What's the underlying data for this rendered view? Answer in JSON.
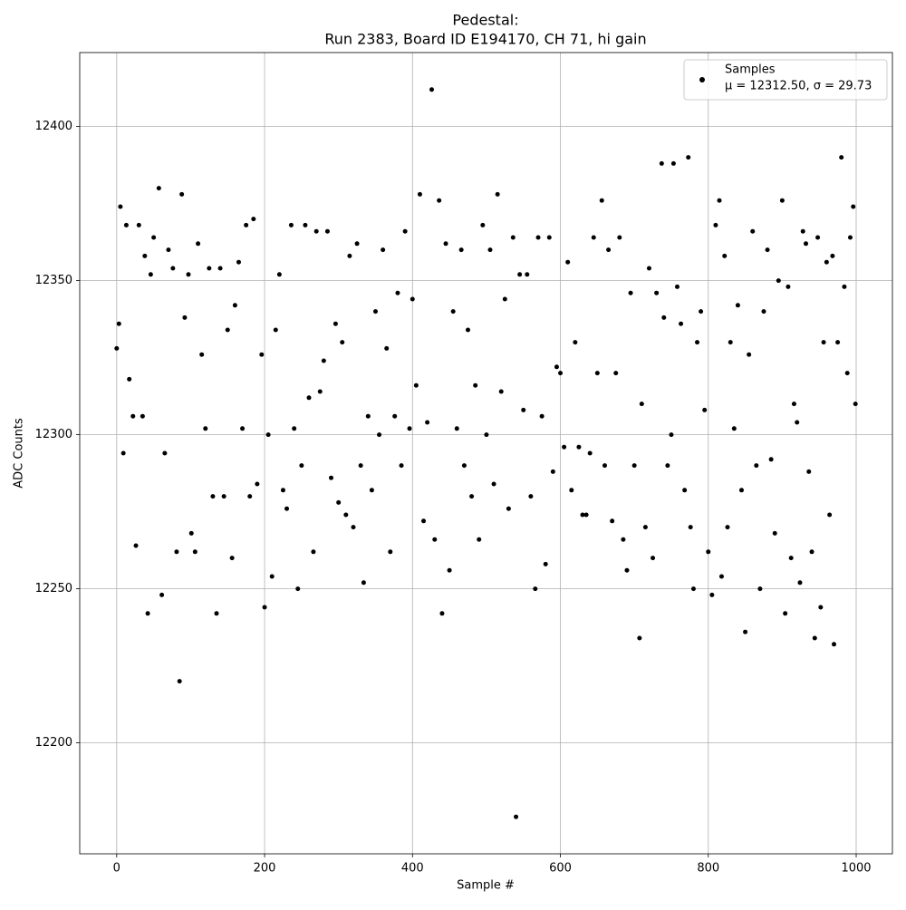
{
  "chart_data": {
    "type": "scatter",
    "title": "Pedestal:",
    "subtitle": "Run 2383, Board ID E194170, CH 71, hi gain",
    "x_label": "Sample #",
    "y_label": "ADC Counts",
    "xlim": [
      -50,
      1049
    ],
    "ylim": [
      12164,
      12424
    ],
    "xticks": [
      0,
      200,
      400,
      600,
      800,
      1000
    ],
    "yticks": [
      12200,
      12250,
      12300,
      12350,
      12400
    ],
    "grid": true,
    "legend": "upper right",
    "legend_note": "μ = 12312.50, σ = 29.73",
    "series": [
      {
        "name": "Samples",
        "color": "#000000",
        "x": [
          0,
          3,
          5,
          9,
          13,
          17,
          22,
          26,
          30,
          35,
          38,
          42,
          46,
          50,
          57,
          61,
          65,
          70,
          76,
          81,
          85,
          88,
          92,
          97,
          101,
          106,
          110,
          115,
          120,
          125,
          130,
          135,
          140,
          145,
          150,
          156,
          160,
          165,
          170,
          175,
          180,
          185,
          190,
          196,
          200,
          205,
          210,
          215,
          220,
          225,
          230,
          236,
          240,
          245,
          250,
          255,
          260,
          266,
          270,
          275,
          280,
          285,
          290,
          296,
          300,
          305,
          310,
          315,
          320,
          325,
          330,
          334,
          340,
          345,
          350,
          355,
          360,
          365,
          370,
          376,
          380,
          385,
          390,
          396,
          400,
          405,
          410,
          415,
          420,
          426,
          430,
          436,
          440,
          445,
          450,
          455,
          460,
          466,
          470,
          475,
          480,
          485,
          490,
          495,
          500,
          505,
          510,
          515,
          520,
          525,
          530,
          536,
          540,
          545,
          550,
          555,
          560,
          566,
          570,
          575,
          580,
          585,
          590,
          595,
          600,
          605,
          610,
          615,
          620,
          625,
          630,
          635,
          640,
          645,
          650,
          656,
          660,
          665,
          670,
          675,
          680,
          685,
          690,
          695,
          700,
          707,
          710,
          715,
          720,
          725,
          730,
          737,
          740,
          745,
          750,
          753,
          758,
          763,
          768,
          773,
          776,
          780,
          785,
          790,
          795,
          800,
          805,
          810,
          815,
          818,
          822,
          826,
          830,
          835,
          840,
          845,
          850,
          855,
          860,
          865,
          870,
          875,
          880,
          885,
          890,
          895,
          900,
          904,
          908,
          912,
          916,
          920,
          924,
          928,
          932,
          936,
          940,
          944,
          948,
          952,
          956,
          960,
          964,
          968,
          970,
          975,
          980,
          984,
          988,
          992,
          996,
          999
        ],
        "values": [
          12328,
          12336,
          12374,
          12294,
          12368,
          12318,
          12306,
          12264,
          12368,
          12306,
          12358,
          12242,
          12352,
          12364,
          12380,
          12248,
          12294,
          12360,
          12354,
          12262,
          12220,
          12378,
          12338,
          12352,
          12268,
          12262,
          12362,
          12326,
          12302,
          12354,
          12280,
          12242,
          12354,
          12280,
          12334,
          12260,
          12342,
          12356,
          12302,
          12368,
          12280,
          12370,
          12284,
          12326,
          12244,
          12300,
          12254,
          12334,
          12352,
          12282,
          12276,
          12368,
          12302,
          12250,
          12290,
          12368,
          12312,
          12262,
          12366,
          12314,
          12324,
          12366,
          12286,
          12336,
          12278,
          12330,
          12274,
          12358,
          12270,
          12362,
          12290,
          12252,
          12306,
          12282,
          12340,
          12300,
          12360,
          12328,
          12262,
          12306,
          12346,
          12290,
          12366,
          12302,
          12344,
          12316,
          12378,
          12272,
          12304,
          12412,
          12266,
          12376,
          12242,
          12362,
          12256,
          12340,
          12302,
          12360,
          12290,
          12334,
          12280,
          12316,
          12266,
          12368,
          12300,
          12360,
          12284,
          12378,
          12314,
          12344,
          12276,
          12364,
          12176,
          12352,
          12308,
          12352,
          12280,
          12250,
          12364,
          12306,
          12258,
          12364,
          12288,
          12322,
          12320,
          12296,
          12356,
          12282,
          12330,
          12296,
          12274,
          12274,
          12294,
          12364,
          12320,
          12376,
          12290,
          12360,
          12272,
          12320,
          12364,
          12266,
          12256,
          12346,
          12290,
          12234,
          12310,
          12270,
          12354,
          12260,
          12346,
          12388,
          12338,
          12290,
          12300,
          12388,
          12348,
          12336,
          12282,
          12390,
          12270,
          12250,
          12330,
          12340,
          12308,
          12262,
          12248,
          12368,
          12376,
          12254,
          12358,
          12270,
          12330,
          12302,
          12342,
          12282,
          12236,
          12326,
          12366,
          12290,
          12250,
          12340,
          12360,
          12292,
          12268,
          12350,
          12376,
          12242,
          12348,
          12260,
          12310,
          12304,
          12252,
          12366,
          12362,
          12288,
          12262,
          12234,
          12364,
          12244,
          12330,
          12356,
          12274,
          12358,
          12232,
          12330,
          12390,
          12348,
          12320,
          12364,
          12374,
          12310
        ]
      }
    ]
  }
}
